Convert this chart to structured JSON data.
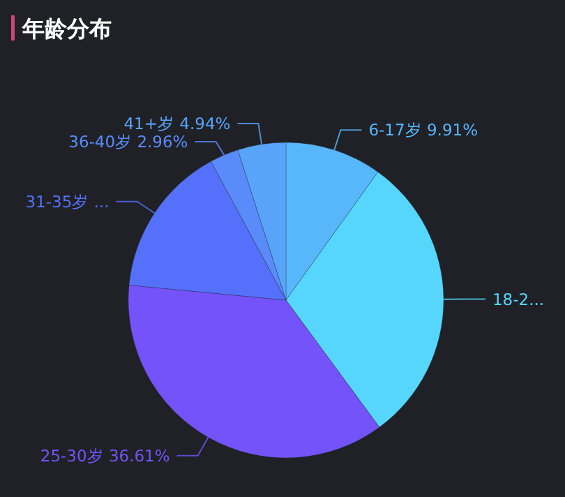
{
  "chart_data": {
    "type": "pie",
    "title": "年龄分布",
    "categories": [
      "6-17岁",
      "18-2...",
      "25-30岁",
      "31-35岁",
      "36-40岁",
      "41+岁"
    ],
    "values": [
      9.91,
      30.0,
      36.61,
      15.58,
      2.96,
      4.94
    ],
    "value_labels": [
      "9.91%",
      null,
      "36.61%",
      "...",
      "2.96%",
      "4.94%"
    ],
    "colors": [
      "#58b6fb",
      "#56d6fb",
      "#7453fb",
      "#5571fb",
      "#5a8bfb",
      "#59a4fb"
    ]
  }
}
